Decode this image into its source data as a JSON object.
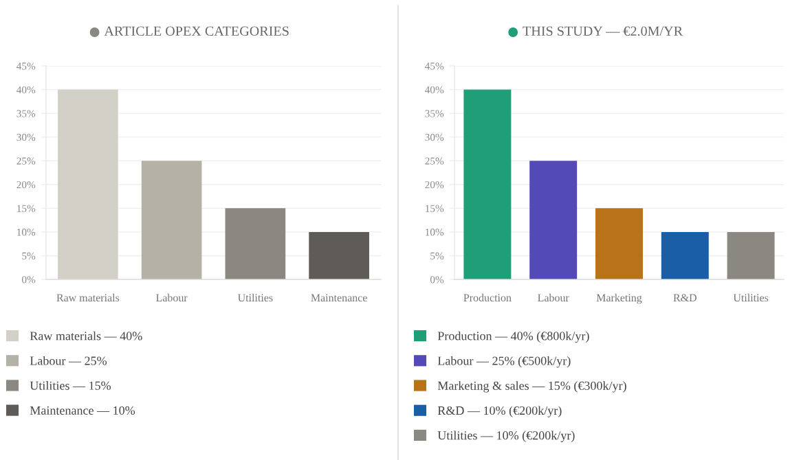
{
  "chart_data": [
    {
      "type": "bar",
      "title": "ARTICLE OPEX CATEGORIES",
      "categories": [
        "Raw materials",
        "Labour",
        "Utilities",
        "Maintenance"
      ],
      "stacked": true,
      "series": [
        {
          "name": "Raw materials — 40%",
          "color": "#d3d1c7",
          "values": [
            40,
            null,
            null,
            null
          ]
        },
        {
          "name": "Labour — 25%",
          "color": "#b4b2a7",
          "values": [
            null,
            25,
            null,
            null
          ]
        },
        {
          "name": "Utilities — 15%",
          "color": "#8a8880",
          "values": [
            null,
            null,
            15,
            null
          ]
        },
        {
          "name": "Maintenance — 10%",
          "color": "#5f5b57",
          "values": [
            null,
            null,
            null,
            10
          ]
        }
      ],
      "ylim": [
        0,
        45
      ],
      "yticks": [
        {
          "value": 0,
          "label": "0%"
        },
        {
          "value": 5,
          "label": "5%"
        },
        {
          "value": 10,
          "label": "10%"
        },
        {
          "value": 15,
          "label": "15%"
        },
        {
          "value": 20,
          "label": "20%"
        },
        {
          "value": 25,
          "label": "25%"
        },
        {
          "value": 30,
          "label": "30%"
        },
        {
          "value": 35,
          "label": "35%"
        },
        {
          "value": 40,
          "label": "40%"
        },
        {
          "value": 45,
          "label": "45%"
        }
      ],
      "grid": "y",
      "legend": "bottom"
    },
    {
      "type": "bar",
      "title": "THIS STUDY — €2.0M/YR",
      "categories": [
        "Production",
        "Labour",
        "Marketing",
        "R&D",
        "Utilities"
      ],
      "stacked": true,
      "series": [
        {
          "name": "Production — 40% (€800k/yr)",
          "color": "#1f9e77",
          "values": [
            40,
            null,
            null,
            null,
            null
          ]
        },
        {
          "name": "Labour — 25% (€500k/yr)",
          "color": "#534ab7",
          "values": [
            null,
            25,
            null,
            null,
            null
          ]
        },
        {
          "name": "Marketing & sales — 15% (€300k/yr)",
          "color": "#b8731a",
          "values": [
            null,
            null,
            15,
            null,
            null
          ]
        },
        {
          "name": "R&D — 10% (€200k/yr)",
          "color": "#1a5fa5",
          "values": [
            null,
            null,
            null,
            10,
            null
          ]
        },
        {
          "name": "Utilities — 10% (€200k/yr)",
          "color": "#8a8880",
          "values": [
            null,
            null,
            null,
            null,
            10
          ]
        }
      ],
      "ylim": [
        0,
        45
      ],
      "yticks": [
        {
          "value": 0,
          "label": "0%"
        },
        {
          "value": 5,
          "label": "5%"
        },
        {
          "value": 10,
          "label": "10%"
        },
        {
          "value": 15,
          "label": "15%"
        },
        {
          "value": 20,
          "label": "20%"
        },
        {
          "value": 25,
          "label": "25%"
        },
        {
          "value": 30,
          "label": "30%"
        },
        {
          "value": 35,
          "label": "35%"
        },
        {
          "value": 40,
          "label": "40%"
        },
        {
          "value": 45,
          "label": "45%"
        }
      ],
      "grid": "y",
      "legend": "bottom"
    }
  ]
}
